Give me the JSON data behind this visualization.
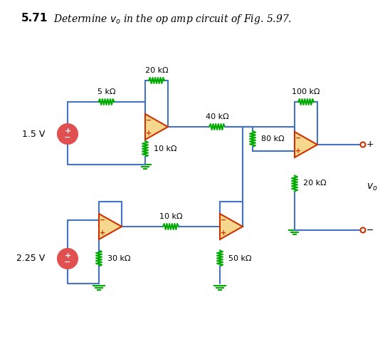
{
  "title": "5.71  Determine vₒ in the op amp circuit of Fig. 5.97.",
  "bg_color": "#ffffff",
  "wire_color": "#4472c4",
  "resistor_color": "#00aa00",
  "opamp_fill": "#f5d78e",
  "opamp_border": "#cc3300",
  "voltage_fill": "#e05050",
  "ground_color": "#00aa00",
  "terminal_color": "#cc3300",
  "labels": {
    "R1": "5 kΩ",
    "R2": "20 kΩ",
    "R3": "10 kΩ",
    "R4": "40 kΩ",
    "R5": "80 kΩ",
    "R6": "100 kΩ",
    "R7": "20 kΩ",
    "R8": "10 kΩ",
    "R9": "30 kΩ",
    "R10": "50 kΩ",
    "V1": "1.5 V",
    "V2": "2.25 V",
    "Vo": "vₒ"
  }
}
